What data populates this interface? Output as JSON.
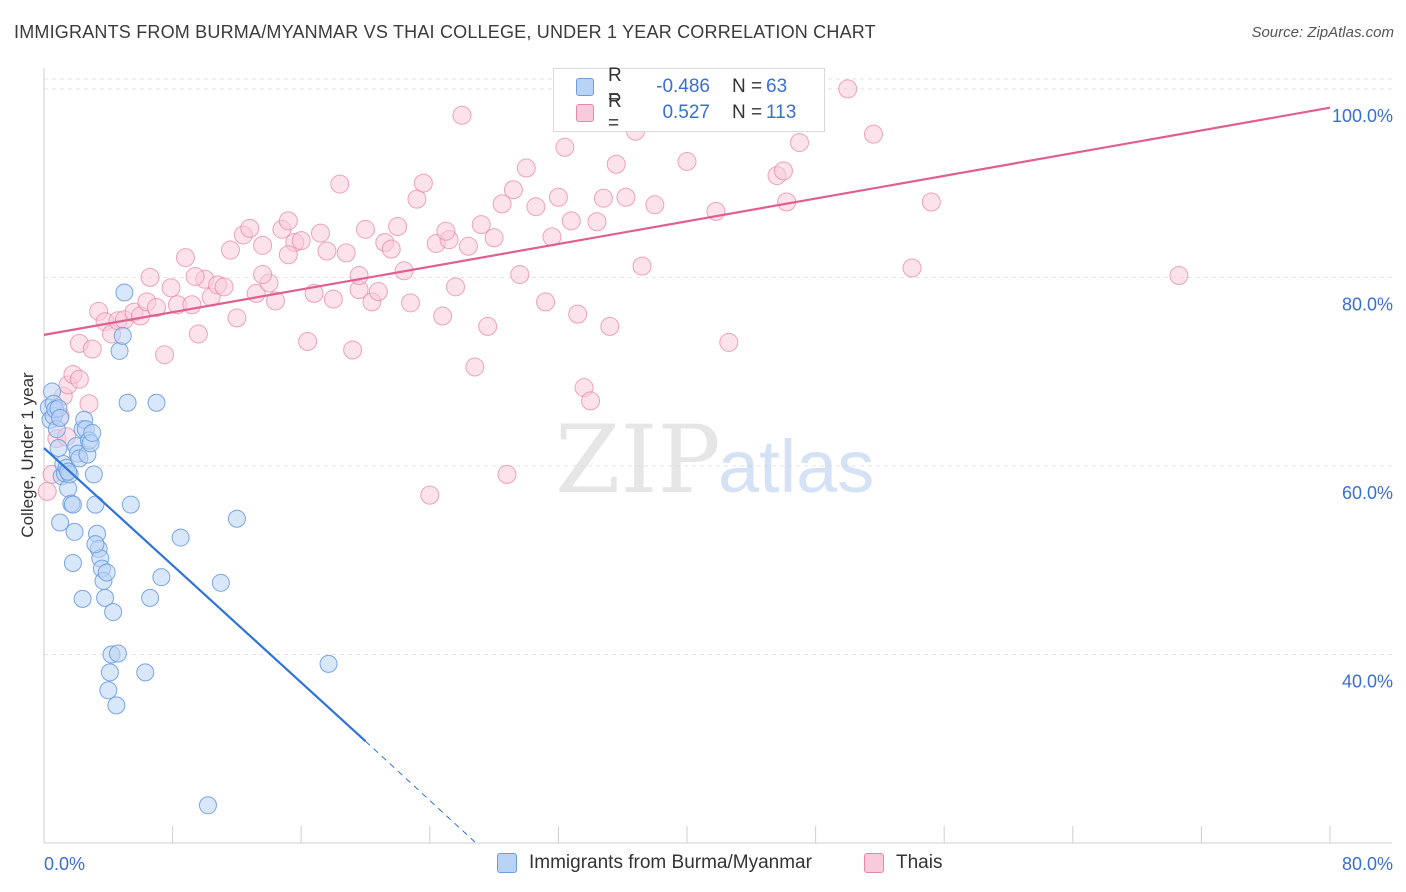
{
  "title": "IMMIGRANTS FROM BURMA/MYANMAR VS THAI COLLEGE, UNDER 1 YEAR CORRELATION CHART",
  "source": "Source: ZipAtlas.com",
  "watermark": {
    "zip": "ZIP",
    "atlas": "atlas"
  },
  "legend": {
    "rows": [
      {
        "r_label": "R =",
        "r_value": "-0.486",
        "n_label": "N =",
        "n_value": "63",
        "color": "#a9c8f2",
        "border": "#6d9de0"
      },
      {
        "r_label": "R =",
        "r_value": "0.527",
        "n_label": "N =",
        "n_value": "113",
        "color": "#f7bcd0",
        "border": "#e887a8"
      }
    ]
  },
  "bottom_legend": [
    {
      "label": "Immigrants from Burma/Myanmar",
      "color": "#b9d3f5",
      "border": "#6d9de0"
    },
    {
      "label": "Thais",
      "color": "#f9cadb",
      "border": "#e887a8"
    }
  ],
  "chart_data": {
    "type": "scatter",
    "title": "IMMIGRANTS FROM BURMA/MYANMAR VS THAI COLLEGE, UNDER 1 YEAR CORRELATION CHART",
    "xlabel": "",
    "ylabel": "College, Under 1 year",
    "xlim": [
      0,
      80
    ],
    "ylim": [
      20,
      102
    ],
    "x_tick_labels": [
      "0.0%",
      "80.0%"
    ],
    "y_ticks": [
      40,
      60,
      80,
      100
    ],
    "y_tick_labels": [
      "40.0%",
      "60.0%",
      "80.0%",
      "100.0%"
    ],
    "grid": true,
    "series": [
      {
        "name": "Immigrants from Burma/Myanmar",
        "color": "#6d9de0",
        "fill": "#b9d3f5",
        "trend": {
          "x_start": 0.0,
          "y_start": 61.9,
          "x_solid_end": 20.0,
          "y_solid_end": 30.8,
          "x_dash_end": 27.0,
          "y_dash_end": 19.8
        },
        "points": [
          [
            0.3,
            66.2
          ],
          [
            0.4,
            64.9
          ],
          [
            0.5,
            67.9
          ],
          [
            0.6,
            66.6
          ],
          [
            0.6,
            65.3
          ],
          [
            0.7,
            66.0
          ],
          [
            0.8,
            63.9
          ],
          [
            0.9,
            66.1
          ],
          [
            1.0,
            65.1
          ],
          [
            1.1,
            58.9
          ],
          [
            1.2,
            60.2
          ],
          [
            1.3,
            59.2
          ],
          [
            1.4,
            59.8
          ],
          [
            1.5,
            57.6
          ],
          [
            1.6,
            59.1
          ],
          [
            1.7,
            56.0
          ],
          [
            1.8,
            55.9
          ],
          [
            1.9,
            53.0
          ],
          [
            2.0,
            62.1
          ],
          [
            2.1,
            61.3
          ],
          [
            2.2,
            60.8
          ],
          [
            2.4,
            63.9
          ],
          [
            2.5,
            64.9
          ],
          [
            2.6,
            63.9
          ],
          [
            2.7,
            61.2
          ],
          [
            2.8,
            62.7
          ],
          [
            2.9,
            62.4
          ],
          [
            3.0,
            63.5
          ],
          [
            3.1,
            59.1
          ],
          [
            3.2,
            55.9
          ],
          [
            3.3,
            52.8
          ],
          [
            3.4,
            51.2
          ],
          [
            3.5,
            50.2
          ],
          [
            3.6,
            49.1
          ],
          [
            3.7,
            47.8
          ],
          [
            3.8,
            46.0
          ],
          [
            3.9,
            48.7
          ],
          [
            4.0,
            36.2
          ],
          [
            4.1,
            38.1
          ],
          [
            4.2,
            40.0
          ],
          [
            4.3,
            44.5
          ],
          [
            4.5,
            34.6
          ],
          [
            4.7,
            72.2
          ],
          [
            4.9,
            73.8
          ],
          [
            5.0,
            78.4
          ],
          [
            5.2,
            66.7
          ],
          [
            5.4,
            55.9
          ],
          [
            6.3,
            38.1
          ],
          [
            6.6,
            46.0
          ],
          [
            7.0,
            66.7
          ],
          [
            7.3,
            48.2
          ],
          [
            8.5,
            52.4
          ],
          [
            10.2,
            24.0
          ],
          [
            11.0,
            47.6
          ],
          [
            12.0,
            54.4
          ],
          [
            17.7,
            39.0
          ],
          [
            1.0,
            54.0
          ],
          [
            1.8,
            49.7
          ],
          [
            2.4,
            45.9
          ],
          [
            3.2,
            51.7
          ],
          [
            4.6,
            40.1
          ],
          [
            0.9,
            61.9
          ],
          [
            1.5,
            59.4
          ]
        ]
      },
      {
        "name": "Thais",
        "color": "#e887a8",
        "fill": "#f9cadb",
        "trend": {
          "x_start": 0.0,
          "y_start": 73.9,
          "x_end": 80.0,
          "y_end": 98.0
        },
        "points": [
          [
            0.2,
            57.3
          ],
          [
            0.5,
            59.1
          ],
          [
            0.8,
            62.9
          ],
          [
            1.0,
            65.3
          ],
          [
            1.2,
            67.4
          ],
          [
            1.5,
            68.6
          ],
          [
            1.8,
            69.7
          ],
          [
            2.2,
            73.0
          ],
          [
            2.8,
            66.6
          ],
          [
            3.4,
            76.4
          ],
          [
            3.8,
            75.3
          ],
          [
            4.2,
            74.0
          ],
          [
            4.6,
            75.4
          ],
          [
            5.0,
            75.5
          ],
          [
            5.6,
            76.3
          ],
          [
            6.0,
            75.9
          ],
          [
            6.4,
            77.4
          ],
          [
            6.6,
            80.0
          ],
          [
            7.0,
            76.8
          ],
          [
            7.5,
            71.8
          ],
          [
            7.9,
            78.9
          ],
          [
            8.3,
            77.1
          ],
          [
            8.8,
            82.1
          ],
          [
            9.2,
            77.1
          ],
          [
            9.6,
            74.0
          ],
          [
            10.0,
            79.8
          ],
          [
            10.4,
            77.9
          ],
          [
            10.8,
            79.2
          ],
          [
            11.2,
            79.0
          ],
          [
            11.6,
            82.9
          ],
          [
            12.0,
            75.7
          ],
          [
            12.4,
            84.5
          ],
          [
            12.8,
            85.2
          ],
          [
            13.2,
            78.3
          ],
          [
            13.6,
            83.4
          ],
          [
            14.0,
            79.4
          ],
          [
            14.4,
            77.5
          ],
          [
            14.8,
            85.1
          ],
          [
            15.2,
            86.0
          ],
          [
            15.6,
            83.7
          ],
          [
            16.0,
            83.9
          ],
          [
            16.4,
            73.2
          ],
          [
            16.8,
            78.3
          ],
          [
            17.2,
            84.7
          ],
          [
            17.6,
            82.8
          ],
          [
            18.0,
            77.7
          ],
          [
            18.4,
            89.9
          ],
          [
            18.8,
            82.6
          ],
          [
            19.2,
            72.3
          ],
          [
            19.6,
            78.7
          ],
          [
            20.0,
            85.1
          ],
          [
            20.4,
            77.4
          ],
          [
            20.8,
            78.5
          ],
          [
            21.2,
            83.7
          ],
          [
            21.6,
            83.0
          ],
          [
            22.0,
            85.4
          ],
          [
            22.4,
            80.7
          ],
          [
            22.8,
            77.3
          ],
          [
            23.2,
            88.3
          ],
          [
            23.6,
            90.0
          ],
          [
            24.0,
            56.9
          ],
          [
            24.4,
            83.6
          ],
          [
            24.8,
            75.9
          ],
          [
            25.2,
            84.0
          ],
          [
            25.6,
            79.0
          ],
          [
            26.0,
            97.2
          ],
          [
            26.4,
            83.3
          ],
          [
            26.8,
            70.5
          ],
          [
            27.2,
            85.6
          ],
          [
            27.6,
            74.8
          ],
          [
            28.0,
            84.2
          ],
          [
            28.5,
            87.8
          ],
          [
            28.8,
            59.1
          ],
          [
            29.2,
            89.3
          ],
          [
            29.6,
            80.3
          ],
          [
            30.0,
            91.6
          ],
          [
            30.6,
            87.5
          ],
          [
            31.2,
            77.4
          ],
          [
            31.6,
            84.3
          ],
          [
            32.0,
            88.5
          ],
          [
            32.4,
            93.8
          ],
          [
            32.8,
            86.0
          ],
          [
            33.2,
            76.1
          ],
          [
            33.6,
            68.3
          ],
          [
            34.0,
            66.9
          ],
          [
            34.4,
            85.9
          ],
          [
            34.8,
            88.4
          ],
          [
            35.2,
            74.8
          ],
          [
            35.6,
            92.0
          ],
          [
            36.2,
            88.5
          ],
          [
            36.8,
            95.5
          ],
          [
            37.2,
            81.2
          ],
          [
            38.0,
            87.7
          ],
          [
            40.0,
            92.3
          ],
          [
            41.8,
            87.0
          ],
          [
            42.6,
            73.1
          ],
          [
            45.6,
            90.8
          ],
          [
            46.0,
            91.3
          ],
          [
            46.2,
            88.0
          ],
          [
            47.0,
            94.3
          ],
          [
            50.0,
            100.0
          ],
          [
            51.6,
            95.2
          ],
          [
            54.0,
            81.0
          ],
          [
            55.2,
            88.0
          ],
          [
            70.6,
            80.2
          ],
          [
            9.4,
            80.1
          ],
          [
            13.6,
            80.3
          ],
          [
            15.2,
            82.4
          ],
          [
            19.6,
            80.2
          ],
          [
            25.0,
            84.9
          ],
          [
            2.2,
            69.2
          ],
          [
            3.0,
            72.4
          ],
          [
            1.4,
            63.1
          ]
        ]
      }
    ]
  }
}
